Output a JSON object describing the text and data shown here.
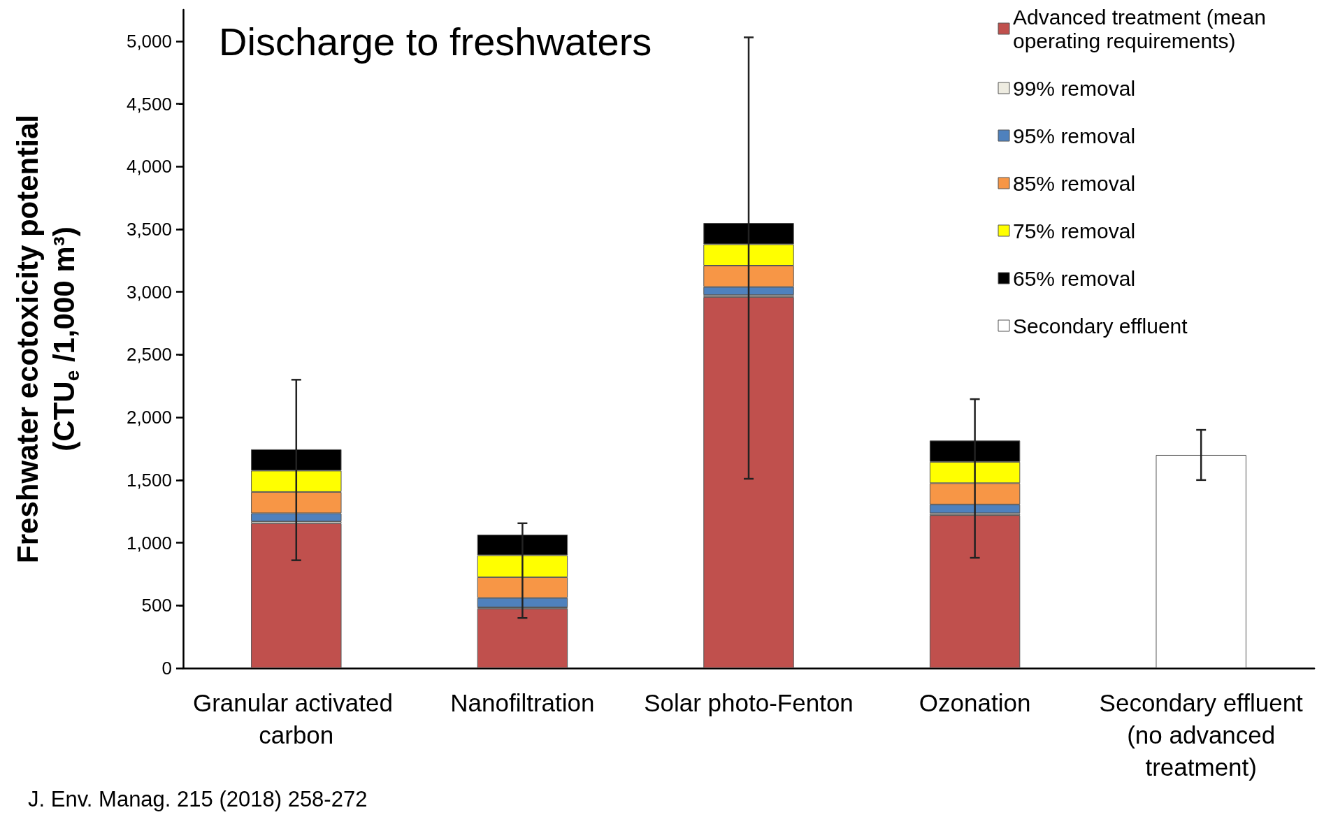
{
  "chart_data": {
    "type": "bar",
    "stacked": true,
    "title": "Discharge to freshwaters",
    "ylabel": "Freshwater ecotoxicity potential\n(CTU$_{e}$ /1,000 m³)",
    "annotations": [
      "J. Env. Manag. 215 (2018) 258-272"
    ],
    "categories": [
      "Granular activated carbon",
      "Nanofiltration",
      "Solar photo-Fenton",
      "Ozonation",
      "Secondary effluent (no advanced treatment)"
    ],
    "series": [
      {
        "name": "Advanced treatment (mean operating requirements)",
        "color": "#c0504d",
        "values": [
          1155,
          475,
          2960,
          1220,
          null
        ]
      },
      {
        "name": "99% removal",
        "color": "#eeece1",
        "values": [
          15,
          10,
          15,
          15,
          null
        ]
      },
      {
        "name": "95% removal",
        "color": "#4f81bd",
        "values": [
          65,
          75,
          65,
          70,
          null
        ]
      },
      {
        "name": "85% removal",
        "color": "#f79646",
        "values": [
          170,
          165,
          170,
          170,
          null
        ]
      },
      {
        "name": "75% removal",
        "color": "#ffff00",
        "values": [
          170,
          175,
          170,
          170,
          null
        ]
      },
      {
        "name": "65% removal",
        "color": "#000000",
        "values": [
          170,
          165,
          170,
          170,
          null
        ],
        "errors": [
          [
            860,
            2300
          ],
          [
            400,
            1155
          ],
          [
            1510,
            5030
          ],
          [
            880,
            2145
          ],
          null
        ]
      },
      {
        "name": "Secondary effluent",
        "color": "#ffffff",
        "values": [
          null,
          null,
          null,
          null,
          1700
        ],
        "errors": [
          null,
          null,
          null,
          null,
          [
            1500,
            1900
          ]
        ]
      }
    ],
    "ylim": [
      0,
      5250
    ],
    "yticks": [
      0,
      {
        "value": 500,
        "label": "500"
      },
      {
        "value": 1000,
        "label": "1,000"
      },
      {
        "value": 1500,
        "label": "1,500"
      },
      {
        "value": 2000,
        "label": "2,000"
      },
      {
        "value": 2500,
        "label": "2,500"
      },
      {
        "value": 3000,
        "label": "3,000"
      },
      {
        "value": 3500,
        "label": "3,500"
      },
      {
        "value": 4000,
        "label": "4,000"
      },
      {
        "value": 4500,
        "label": "4,500"
      },
      {
        "value": 5000,
        "label": "5,000"
      }
    ],
    "grid": false,
    "legend": "top right"
  }
}
